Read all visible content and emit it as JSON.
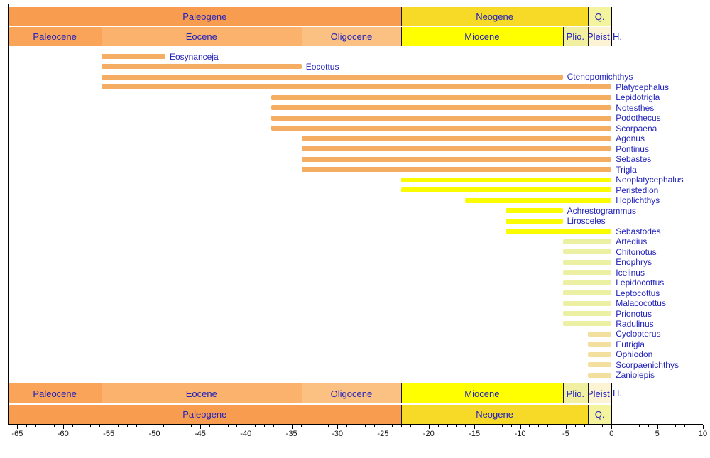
{
  "timescale": {
    "holocene_abbr": "H.",
    "periods": [
      {
        "label": "Paleogene",
        "start": -66,
        "end": -23,
        "color": "#F89C50"
      },
      {
        "label": "Neogene",
        "start": -23,
        "end": -2.58,
        "color": "#F7D928"
      },
      {
        "label": "Q.",
        "start": -2.58,
        "end": 0,
        "color": "#F4F49E"
      }
    ],
    "epochs": [
      {
        "label": "Paleocene",
        "start": -66,
        "end": -55.8,
        "color": "#F9A458"
      },
      {
        "label": "Eocene",
        "start": -55.8,
        "end": -33.9,
        "color": "#FAB26C"
      },
      {
        "label": "Oligocene",
        "start": -33.9,
        "end": -23,
        "color": "#FBC183"
      },
      {
        "label": "Miocene",
        "start": -23,
        "end": -5.33,
        "color": "#FFFF00"
      },
      {
        "label": "Plio.",
        "start": -5.33,
        "end": -2.58,
        "color": "#F0F0A0"
      },
      {
        "label": "Pleist.",
        "start": -2.58,
        "end": 0,
        "color": "#FBF3D3"
      }
    ]
  },
  "colors": {
    "taxon_groups": {
      "paleogene": "#F5AD63",
      "miocene": "#FCFC00",
      "pliocene": "#ECF0A2",
      "pleistocene": "#F3DF9E"
    },
    "label_text": "#2222BB",
    "axis_text": "#111111",
    "line": "#000000"
  },
  "chart_data": {
    "type": "bar",
    "subtype": "horizontal-taxon-range-chart",
    "title": "",
    "xlabel": "",
    "ylabel": "",
    "x_unit": "Ma",
    "xlim": [
      -66,
      10
    ],
    "grid": false,
    "legend": false,
    "x_ticks_major": [
      -65,
      -60,
      -55,
      -50,
      -45,
      -40,
      -35,
      -30,
      -25,
      -20,
      -15,
      -10,
      -5,
      0,
      5,
      10
    ],
    "x_tick_minor_step": 1,
    "taxa": [
      {
        "name": "Eosynanceja",
        "range": [
          -55.8,
          -48.8
        ],
        "group": "paleogene"
      },
      {
        "name": "Eocottus",
        "range": [
          -55.8,
          -33.9
        ],
        "group": "paleogene"
      },
      {
        "name": "Ctenopomichthys",
        "range": [
          -55.8,
          -5.33
        ],
        "group": "paleogene"
      },
      {
        "name": "Platycephalus",
        "range": [
          -55.8,
          0
        ],
        "group": "paleogene"
      },
      {
        "name": "Lepidotrigla",
        "range": [
          -37.2,
          0
        ],
        "group": "paleogene"
      },
      {
        "name": "Notesthes",
        "range": [
          -37.2,
          0
        ],
        "group": "paleogene"
      },
      {
        "name": "Podothecus",
        "range": [
          -37.2,
          0
        ],
        "group": "paleogene"
      },
      {
        "name": "Scorpaena",
        "range": [
          -37.2,
          0
        ],
        "group": "paleogene"
      },
      {
        "name": "Agonus",
        "range": [
          -33.9,
          0
        ],
        "group": "paleogene"
      },
      {
        "name": "Pontinus",
        "range": [
          -33.9,
          0
        ],
        "group": "paleogene"
      },
      {
        "name": "Sebastes",
        "range": [
          -33.9,
          0
        ],
        "group": "paleogene"
      },
      {
        "name": "Trigla",
        "range": [
          -33.9,
          0
        ],
        "group": "paleogene"
      },
      {
        "name": "Neoplatycephalus",
        "range": [
          -23,
          0
        ],
        "group": "miocene"
      },
      {
        "name": "Peristedion",
        "range": [
          -23,
          0
        ],
        "group": "miocene"
      },
      {
        "name": "Hoplichthys",
        "range": [
          -16,
          0
        ],
        "group": "miocene"
      },
      {
        "name": "Achrestogrammus",
        "range": [
          -11.6,
          -5.33
        ],
        "group": "miocene"
      },
      {
        "name": "Lirosceles",
        "range": [
          -11.6,
          -5.33
        ],
        "group": "miocene"
      },
      {
        "name": "Sebastodes",
        "range": [
          -11.6,
          0
        ],
        "group": "miocene"
      },
      {
        "name": "Artedius",
        "range": [
          -5.33,
          0
        ],
        "group": "pliocene"
      },
      {
        "name": "Chitonotus",
        "range": [
          -5.33,
          0
        ],
        "group": "pliocene"
      },
      {
        "name": "Enophrys",
        "range": [
          -5.33,
          0
        ],
        "group": "pliocene"
      },
      {
        "name": "Icelinus",
        "range": [
          -5.33,
          0
        ],
        "group": "pliocene"
      },
      {
        "name": "Lepidocottus",
        "range": [
          -5.33,
          0
        ],
        "group": "pliocene"
      },
      {
        "name": "Leptocottus",
        "range": [
          -5.33,
          0
        ],
        "group": "pliocene"
      },
      {
        "name": "Malacocottus",
        "range": [
          -5.33,
          0
        ],
        "group": "pliocene"
      },
      {
        "name": "Prionotus",
        "range": [
          -5.33,
          0
        ],
        "group": "pliocene"
      },
      {
        "name": "Radulinus",
        "range": [
          -5.33,
          0
        ],
        "group": "pliocene"
      },
      {
        "name": "Cyclopterus",
        "range": [
          -2.58,
          0
        ],
        "group": "pleistocene"
      },
      {
        "name": "Eutrigla",
        "range": [
          -2.58,
          0
        ],
        "group": "pleistocene"
      },
      {
        "name": "Ophiodon",
        "range": [
          -2.58,
          0
        ],
        "group": "pleistocene"
      },
      {
        "name": "Scorpaenichthys",
        "range": [
          -2.58,
          0
        ],
        "group": "pleistocene"
      },
      {
        "name": "Zaniolepis",
        "range": [
          -2.58,
          0
        ],
        "group": "pleistocene"
      }
    ]
  }
}
